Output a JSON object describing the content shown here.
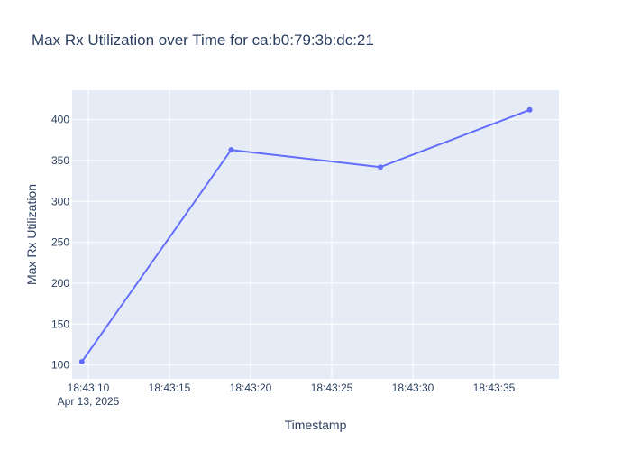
{
  "chart_data": {
    "type": "line",
    "title": "Max Rx Utilization over Time for ca:b0:79:3b:dc:21",
    "xlabel": "Timestamp",
    "ylabel": "Max Rx Utilization",
    "x_tick_labels": [
      "18:43:10",
      "18:43:15",
      "18:43:20",
      "18:43:25",
      "18:43:30",
      "18:43:35"
    ],
    "x_date_label": "Apr 13, 2025",
    "y_ticks": [
      100,
      150,
      200,
      250,
      300,
      350,
      400
    ],
    "x": [
      "2025-04-13 18:43:09.6",
      "2025-04-13 18:43:18.8",
      "2025-04-13 18:43:28.0",
      "2025-04-13 18:43:37.2"
    ],
    "xlim": [
      "2025-04-13 18:43:09.0",
      "2025-04-13 18:43:39.0"
    ],
    "ylim": [
      83,
      436
    ],
    "series": [
      {
        "values": [
          104,
          363,
          342,
          412
        ]
      }
    ],
    "grid": true,
    "colors": {
      "line": "#636efa",
      "plot_bg": "#e5ecf6",
      "grid": "#ffffff",
      "text": "#2a3f5f"
    }
  }
}
